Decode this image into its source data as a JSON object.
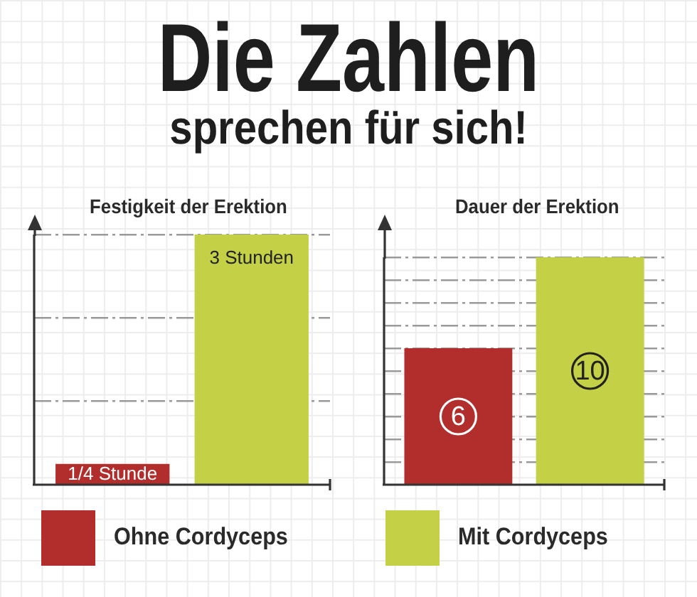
{
  "chart_data": [
    {
      "type": "other",
      "title": "Die Zahlen",
      "subtitle": "sprechen für sich!"
    },
    {
      "type": "bar",
      "title": "Festigkeit der Erektion",
      "categories": [
        null
      ],
      "series": [
        {
          "name": "Ohne Cordyceps",
          "color": "#b22e2c",
          "values": [
            0.25
          ],
          "value_labels": [
            "1/4 Stunde"
          ]
        },
        {
          "name": "Mit Cordyceps",
          "color": "#c4d045",
          "values": [
            3
          ],
          "value_labels": [
            "3 Stunden"
          ]
        }
      ],
      "ylim": [
        0,
        3
      ],
      "yticks": [
        {
          "value": 1,
          "label": null
        },
        {
          "value": 2,
          "label": null
        },
        {
          "value": 3,
          "label": null
        }
      ],
      "grid": "y",
      "tick_labels": false,
      "legend": "bottom"
    },
    {
      "type": "bar",
      "title": "Dauer der Erektion",
      "categories": [
        null
      ],
      "series": [
        {
          "color": "#b22e2c",
          "values": [
            6
          ]
        },
        {
          "color": "#c4d045",
          "values": [
            10
          ]
        }
      ],
      "ylim": [
        0,
        10
      ],
      "yticks": [
        {
          "value": 1,
          "label": null
        },
        {
          "value": 2,
          "label": null
        },
        {
          "value": 3,
          "label": null
        },
        {
          "value": 4,
          "label": null
        },
        {
          "value": 5,
          "label": null
        },
        {
          "value": 6,
          "label": null
        },
        {
          "value": 7,
          "label": null
        },
        {
          "value": 8,
          "label": null
        },
        {
          "value": 9,
          "label": null
        },
        {
          "value": 10,
          "label": null
        }
      ],
      "grid": "y",
      "tick_labels": false,
      "data_labels": true
    }
  ]
}
